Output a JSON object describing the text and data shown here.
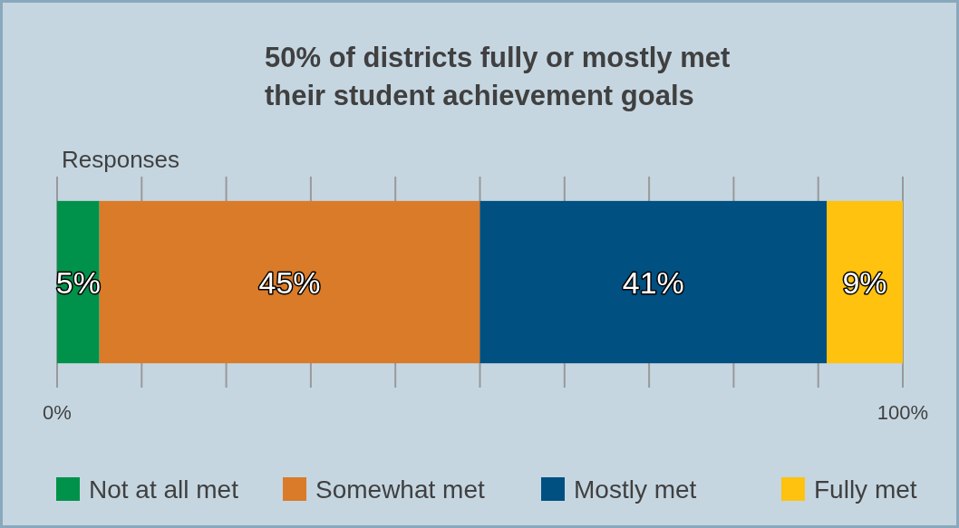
{
  "chart_data": {
    "type": "bar",
    "orientation": "horizontal",
    "stacked": true,
    "title": "50% of districts fully or mostly met\ntheir student achievement goals",
    "categories": [
      "Responses"
    ],
    "series": [
      {
        "name": "Not at all met",
        "color": "#00924a",
        "values": [
          5
        ],
        "value_labels": [
          "5%"
        ]
      },
      {
        "name": "Somewhat met",
        "color": "#d97b28",
        "values": [
          45
        ],
        "value_labels": [
          "45%"
        ]
      },
      {
        "name": "Mostly met",
        "color": "#005082",
        "values": [
          41
        ],
        "value_labels": [
          "41%"
        ]
      },
      {
        "name": "Fully met",
        "color": "#ffc20e",
        "values": [
          9
        ],
        "value_labels": [
          "9%"
        ]
      }
    ],
    "xlim": [
      0,
      100
    ],
    "xticks": [
      {
        "value": 0,
        "label": "0%"
      },
      {
        "value": 10,
        "label": null
      },
      {
        "value": 20,
        "label": null
      },
      {
        "value": 30,
        "label": null
      },
      {
        "value": 40,
        "label": null
      },
      {
        "value": 50,
        "label": null
      },
      {
        "value": 60,
        "label": null
      },
      {
        "value": 70,
        "label": null
      },
      {
        "value": 80,
        "label": null
      },
      {
        "value": 90,
        "label": null
      },
      {
        "value": 100,
        "label": "100%"
      }
    ],
    "grid": "x",
    "legend": "bottom"
  }
}
